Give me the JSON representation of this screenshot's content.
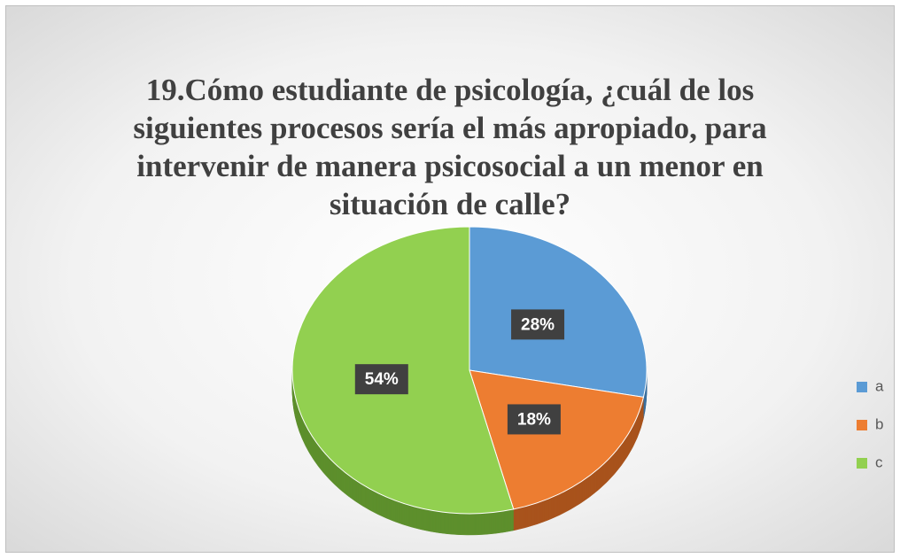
{
  "chart_data": {
    "type": "pie3d",
    "title": "19.Cómo estudiante de psicología, ¿cuál de los siguientes procesos sería el más apropiado, para intervenir de manera psicosocial a un menor en situación de calle?",
    "categories": [
      "a",
      "b",
      "c"
    ],
    "values": [
      28,
      18,
      54
    ],
    "value_labels": [
      "28%",
      "18%",
      "54%"
    ],
    "colors": [
      "#5b9bd5",
      "#ed7d31",
      "#92d050"
    ],
    "side_colors": [
      "#3a6f9e",
      "#a8531c",
      "#5d8f2c"
    ],
    "legend": "right"
  }
}
